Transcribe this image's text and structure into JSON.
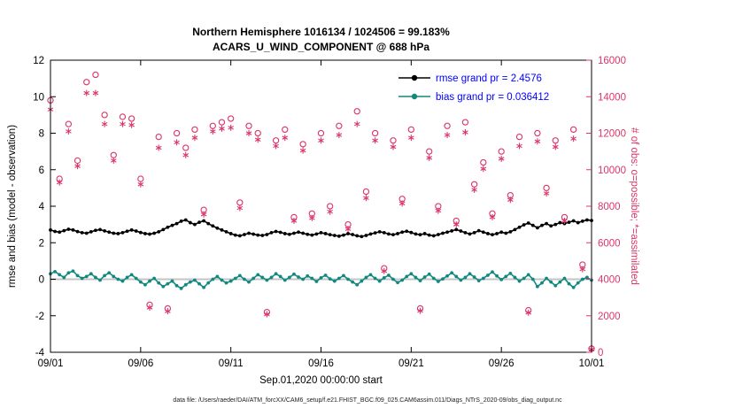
{
  "figure": {
    "title_line1": "Northern Hemisphere 1016134 / 1024506 = 99.183%",
    "title_line2": "ACARS_U_WIND_COMPONENT @ 688 hPa",
    "xlabel": "Sep.01,2020 00:00:00 start",
    "ylabel_left": "rmse and bias (model - observation)",
    "ylabel_right": "# of obs: o=possible; *=assimilated",
    "footer": "data file: /Users/raeder/DAI/ATM_forcXX/CAM6_setup/f.e21.FHIST_BGC.f09_025.CAM6assim.011/Diags_NTrS_2020-09/obs_diag_output.nc",
    "legend": [
      {
        "label": "rmse grand pr = 2.4576",
        "series": "rmse",
        "marker_color": "#000000"
      },
      {
        "label": "bias grand pr = 0.036412",
        "series": "bias",
        "marker_color": "#12897f"
      }
    ],
    "colors": {
      "rmse": "#000000",
      "bias": "#12897f",
      "obs": "#dc3568",
      "legend_text": "#0000ff",
      "zero_line": "#c4c4c4",
      "axis": "#000000"
    }
  },
  "chart_data": {
    "type": "line",
    "title": "Northern Hemisphere 1016134 / 1024506 = 99.183% | ACARS_U_WIND_COMPONENT @ 688 hPa",
    "xlabel": "Sep.01,2020 00:00:00 start",
    "ylabel_left": "rmse and bias (model - observation)",
    "ylabel_right": "# of obs: o=possible; *=assimilated",
    "x_range_days": [
      0,
      30
    ],
    "x_tick_positions": [
      0,
      5,
      10,
      15,
      20,
      25,
      30
    ],
    "x_tick_labels": [
      "09/01",
      "09/06",
      "09/11",
      "09/16",
      "09/21",
      "09/26",
      "10/01"
    ],
    "y_left": {
      "min": -4,
      "max": 12,
      "ticks": [
        -4,
        -2,
        0,
        2,
        4,
        6,
        8,
        10,
        12
      ]
    },
    "y_right": {
      "min": 0,
      "max": 16000,
      "ticks": [
        0,
        2000,
        4000,
        6000,
        8000,
        10000,
        12000,
        14000,
        16000
      ]
    },
    "rmse_grand_pr": 2.4576,
    "bias_grand_pr": 0.036412,
    "series": [
      {
        "name": "rmse",
        "type": "line-dot",
        "axis": "left",
        "color": "#000000",
        "x_step": 0.25,
        "values": [
          2.7,
          2.62,
          2.58,
          2.66,
          2.74,
          2.7,
          2.61,
          2.55,
          2.52,
          2.6,
          2.68,
          2.72,
          2.65,
          2.58,
          2.52,
          2.5,
          2.55,
          2.63,
          2.7,
          2.64,
          2.56,
          2.5,
          2.47,
          2.52,
          2.6,
          2.72,
          2.85,
          2.95,
          3.05,
          3.18,
          3.25,
          3.1,
          3.0,
          3.12,
          3.2,
          3.05,
          2.92,
          2.8,
          2.7,
          2.6,
          2.5,
          2.42,
          2.38,
          2.45,
          2.52,
          2.47,
          2.42,
          2.4,
          2.45,
          2.55,
          2.62,
          2.57,
          2.5,
          2.46,
          2.52,
          2.58,
          2.52,
          2.46,
          2.42,
          2.48,
          2.55,
          2.5,
          2.44,
          2.4,
          2.36,
          2.42,
          2.5,
          2.45,
          2.38,
          2.34,
          2.4,
          2.48,
          2.54,
          2.6,
          2.55,
          2.48,
          2.44,
          2.5,
          2.58,
          2.63,
          2.56,
          2.48,
          2.44,
          2.5,
          2.42,
          2.38,
          2.45,
          2.52,
          2.58,
          2.65,
          2.72,
          2.64,
          2.55,
          2.48,
          2.55,
          2.66,
          2.58,
          2.5,
          2.44,
          2.5,
          2.58,
          2.52,
          2.6,
          2.72,
          2.85,
          2.98,
          3.08,
          2.95,
          2.82,
          2.95,
          3.05,
          2.92,
          3.0,
          3.1,
          3.05,
          3.12,
          3.2,
          3.1,
          3.18,
          3.25,
          3.22
        ]
      },
      {
        "name": "bias",
        "type": "line-dot",
        "axis": "left",
        "color": "#12897f",
        "x_step": 0.25,
        "values": [
          0.3,
          0.42,
          0.25,
          0.1,
          0.35,
          0.45,
          0.2,
          0.05,
          0.15,
          0.3,
          0.1,
          -0.05,
          0.2,
          0.35,
          0.15,
          0.0,
          -0.1,
          0.1,
          0.25,
          0.05,
          -0.15,
          -0.3,
          -0.1,
          0.05,
          -0.2,
          -0.4,
          -0.25,
          -0.1,
          -0.35,
          -0.5,
          -0.3,
          -0.15,
          -0.05,
          -0.25,
          -0.45,
          -0.2,
          0.0,
          0.15,
          -0.05,
          -0.2,
          -0.1,
          0.05,
          0.2,
          0.0,
          -0.15,
          0.05,
          0.25,
          0.1,
          -0.05,
          0.1,
          0.3,
          0.15,
          -0.05,
          0.1,
          0.28,
          0.12,
          0.0,
          0.18,
          0.05,
          -0.12,
          0.08,
          0.22,
          0.02,
          -0.1,
          0.05,
          0.2,
          0.0,
          -0.15,
          -0.3,
          -0.1,
          0.1,
          0.25,
          0.05,
          -0.1,
          0.08,
          0.22,
          0.0,
          -0.18,
          -0.05,
          0.15,
          0.3,
          0.1,
          -0.08,
          0.12,
          0.28,
          0.05,
          -0.12,
          0.02,
          0.18,
          0.35,
          0.15,
          -0.05,
          0.1,
          0.3,
          0.12,
          -0.08,
          0.05,
          0.22,
          0.4,
          0.18,
          -0.02,
          0.15,
          0.32,
          0.1,
          -0.1,
          0.05,
          0.25,
          0.0,
          -0.4,
          -0.2,
          0.05,
          -0.15,
          -0.35,
          -0.15,
          0.05,
          -0.25,
          -0.45,
          -0.2,
          0.0,
          0.1,
          -0.05
        ]
      },
      {
        "name": "possible",
        "type": "scatter-circle",
        "axis": "right",
        "color": "#dc3568",
        "x_step": 0.5,
        "values": [
          13800,
          9500,
          12500,
          10500,
          14800,
          15200,
          13000,
          10800,
          12900,
          12800,
          9500,
          2600,
          11800,
          2400,
          12000,
          11200,
          12200,
          7800,
          12400,
          12600,
          12800,
          8200,
          12400,
          12000,
          2200,
          11600,
          12200,
          7400,
          11400,
          7600,
          12000,
          8000,
          12400,
          7000,
          13200,
          8800,
          12000,
          4600,
          11600,
          8400,
          12200,
          2400,
          11000,
          8000,
          12400,
          7200,
          12600,
          9200,
          10400,
          7600,
          11000,
          8600,
          11800,
          2300,
          12000,
          9000,
          11600,
          7400,
          12200,
          4800,
          200
        ]
      },
      {
        "name": "assimilated",
        "type": "scatter-asterisk",
        "axis": "right",
        "color": "#dc3568",
        "x_step": 0.5,
        "values": [
          13300,
          9300,
          12100,
          10200,
          14200,
          14200,
          12500,
          10500,
          12500,
          12450,
          9200,
          2450,
          11200,
          2250,
          11500,
          10800,
          11750,
          7550,
          12100,
          12250,
          12300,
          7900,
          12000,
          11650,
          2080,
          11300,
          11750,
          7200,
          11050,
          7350,
          11600,
          7700,
          11900,
          6750,
          12500,
          8450,
          11600,
          4450,
          11250,
          8150,
          11750,
          2270,
          10650,
          7750,
          11900,
          7000,
          12050,
          8900,
          10050,
          7400,
          10600,
          8350,
          11300,
          2170,
          11550,
          8700,
          11250,
          7200,
          11700,
          4550,
          150
        ]
      }
    ],
    "legend_entries": [
      "rmse grand pr = 2.4576",
      "bias grand pr = 0.036412"
    ],
    "legend_position": "top-right-inside",
    "grid": "off"
  }
}
